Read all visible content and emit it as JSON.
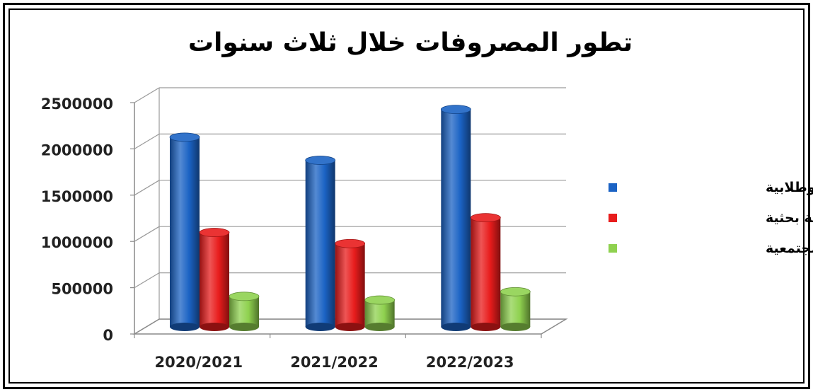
{
  "chart_data": {
    "type": "bar",
    "title": "تطور المصروفات خلال ثلاث سنوات",
    "categories": [
      "2020/2021",
      "2021/2022",
      "2022/2023"
    ],
    "series": [
      {
        "name": "خدمة تعليمية وطلابية",
        "color": "#1b63c4",
        "values": [
          2050000,
          1800000,
          2350000
        ]
      },
      {
        "name": "خدمة بحثية",
        "color": "#e81c1c",
        "values": [
          1020000,
          900000,
          1180000
        ]
      },
      {
        "name": "أنشطة مجتمعية",
        "color": "#8fd14f",
        "values": [
          330000,
          290000,
          380000
        ]
      }
    ],
    "yticks": [
      0,
      500000,
      1000000,
      1500000,
      2000000,
      2500000
    ],
    "ylim": [
      0,
      2500000
    ],
    "grid": true,
    "legend_position": "right"
  }
}
